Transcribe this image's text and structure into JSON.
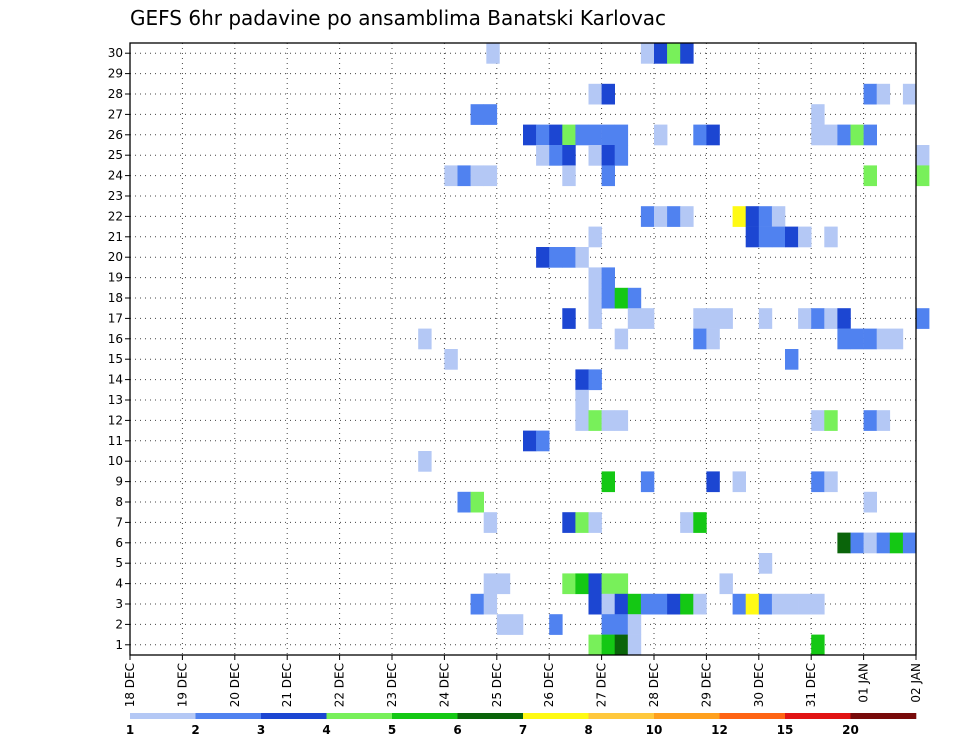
{
  "chart_data": {
    "type": "heatmap",
    "title": "GEFS 6hr padavine po ansamblima Banatski Karlovac",
    "xlabel": "",
    "ylabel": "",
    "x_tick_labels": [
      "18 DEC",
      "19 DEC",
      "20 DEC",
      "21 DEC",
      "22 DEC",
      "23 DEC",
      "24 DEC",
      "25 DEC",
      "26 DEC",
      "27 DEC",
      "28 DEC",
      "29 DEC",
      "30 DEC",
      "31 DEC",
      "01 JAN",
      "02 JAN"
    ],
    "xlim_days": [
      0,
      15
    ],
    "y_ticks": [
      1,
      2,
      3,
      4,
      5,
      6,
      7,
      8,
      9,
      10,
      11,
      12,
      13,
      14,
      15,
      16,
      17,
      18,
      19,
      20,
      21,
      22,
      23,
      24,
      25,
      26,
      27,
      28,
      29,
      30
    ],
    "ylim": [
      0.5,
      30.5
    ],
    "grid": true,
    "cell_width_days": 0.25,
    "legend": {
      "placement": "bottom",
      "labels": [
        "1",
        "2",
        "3",
        "4",
        "5",
        "6",
        "7",
        "8",
        "10",
        "12",
        "15",
        "20"
      ],
      "colors": [
        "#b4c8f5",
        "#5082f0",
        "#1c46d2",
        "#78f05a",
        "#14c814",
        "#0a640a",
        "#fffa14",
        "#ffc83c",
        "#ffa01e",
        "#ff6414",
        "#e11414",
        "#780a0a"
      ]
    },
    "cells": [
      {
        "m": 30,
        "d": 6.8,
        "c": 1
      },
      {
        "m": 30,
        "d": 9.75,
        "c": 1
      },
      {
        "m": 30,
        "d": 10.0,
        "c": 3
      },
      {
        "m": 30,
        "d": 10.25,
        "c": 4
      },
      {
        "m": 30,
        "d": 10.5,
        "c": 3
      },
      {
        "m": 28,
        "d": 8.75,
        "c": 1
      },
      {
        "m": 28,
        "d": 9.0,
        "c": 3
      },
      {
        "m": 28,
        "d": 14.0,
        "c": 2
      },
      {
        "m": 28,
        "d": 14.25,
        "c": 1
      },
      {
        "m": 28,
        "d": 14.75,
        "c": 1
      },
      {
        "m": 27,
        "d": 6.5,
        "c": 2
      },
      {
        "m": 27,
        "d": 6.75,
        "c": 2
      },
      {
        "m": 27,
        "d": 13.0,
        "c": 1
      },
      {
        "m": 26,
        "d": 7.5,
        "c": 3
      },
      {
        "m": 26,
        "d": 7.75,
        "c": 2
      },
      {
        "m": 26,
        "d": 8.0,
        "c": 3
      },
      {
        "m": 26,
        "d": 8.25,
        "c": 4
      },
      {
        "m": 26,
        "d": 8.5,
        "c": 2
      },
      {
        "m": 26,
        "d": 8.75,
        "c": 2
      },
      {
        "m": 26,
        "d": 9.0,
        "c": 2
      },
      {
        "m": 26,
        "d": 9.25,
        "c": 2
      },
      {
        "m": 26,
        "d": 10.0,
        "c": 1
      },
      {
        "m": 26,
        "d": 10.75,
        "c": 2
      },
      {
        "m": 26,
        "d": 11.0,
        "c": 3
      },
      {
        "m": 26,
        "d": 13.0,
        "c": 1
      },
      {
        "m": 26,
        "d": 13.25,
        "c": 1
      },
      {
        "m": 26,
        "d": 13.5,
        "c": 2
      },
      {
        "m": 26,
        "d": 13.75,
        "c": 4
      },
      {
        "m": 26,
        "d": 14.0,
        "c": 2
      },
      {
        "m": 25,
        "d": 7.75,
        "c": 1
      },
      {
        "m": 25,
        "d": 8.0,
        "c": 2
      },
      {
        "m": 25,
        "d": 8.25,
        "c": 3
      },
      {
        "m": 25,
        "d": 8.75,
        "c": 1
      },
      {
        "m": 25,
        "d": 9.0,
        "c": 3
      },
      {
        "m": 25,
        "d": 9.25,
        "c": 2
      },
      {
        "m": 25,
        "d": 15.0,
        "c": 1
      },
      {
        "m": 24,
        "d": 6.0,
        "c": 1
      },
      {
        "m": 24,
        "d": 6.25,
        "c": 2
      },
      {
        "m": 24,
        "d": 6.5,
        "c": 1
      },
      {
        "m": 24,
        "d": 6.75,
        "c": 1
      },
      {
        "m": 24,
        "d": 8.25,
        "c": 1
      },
      {
        "m": 24,
        "d": 9.0,
        "c": 2
      },
      {
        "m": 24,
        "d": 14.0,
        "c": 4
      },
      {
        "m": 24,
        "d": 15.0,
        "c": 4
      },
      {
        "m": 22,
        "d": 9.75,
        "c": 2
      },
      {
        "m": 22,
        "d": 10.0,
        "c": 1
      },
      {
        "m": 22,
        "d": 10.25,
        "c": 2
      },
      {
        "m": 22,
        "d": 10.5,
        "c": 1
      },
      {
        "m": 22,
        "d": 11.5,
        "c": 7
      },
      {
        "m": 22,
        "d": 11.75,
        "c": 3
      },
      {
        "m": 22,
        "d": 12.0,
        "c": 2
      },
      {
        "m": 22,
        "d": 12.25,
        "c": 1
      },
      {
        "m": 21,
        "d": 8.75,
        "c": 1
      },
      {
        "m": 21,
        "d": 11.75,
        "c": 3
      },
      {
        "m": 21,
        "d": 12.0,
        "c": 2
      },
      {
        "m": 21,
        "d": 12.25,
        "c": 2
      },
      {
        "m": 21,
        "d": 12.5,
        "c": 3
      },
      {
        "m": 21,
        "d": 12.75,
        "c": 1
      },
      {
        "m": 21,
        "d": 13.25,
        "c": 1
      },
      {
        "m": 20,
        "d": 7.75,
        "c": 3
      },
      {
        "m": 20,
        "d": 8.0,
        "c": 2
      },
      {
        "m": 20,
        "d": 8.25,
        "c": 2
      },
      {
        "m": 20,
        "d": 8.5,
        "c": 1
      },
      {
        "m": 19,
        "d": 8.75,
        "c": 1
      },
      {
        "m": 19,
        "d": 9.0,
        "c": 2
      },
      {
        "m": 18,
        "d": 8.75,
        "c": 1
      },
      {
        "m": 18,
        "d": 9.0,
        "c": 2
      },
      {
        "m": 18,
        "d": 9.25,
        "c": 5
      },
      {
        "m": 18,
        "d": 9.5,
        "c": 2
      },
      {
        "m": 17,
        "d": 8.25,
        "c": 3
      },
      {
        "m": 17,
        "d": 8.75,
        "c": 1
      },
      {
        "m": 17,
        "d": 9.5,
        "c": 1
      },
      {
        "m": 17,
        "d": 9.75,
        "c": 1
      },
      {
        "m": 17,
        "d": 10.75,
        "c": 1
      },
      {
        "m": 17,
        "d": 11.0,
        "c": 1
      },
      {
        "m": 17,
        "d": 11.25,
        "c": 1
      },
      {
        "m": 17,
        "d": 12.0,
        "c": 1
      },
      {
        "m": 17,
        "d": 12.75,
        "c": 1
      },
      {
        "m": 17,
        "d": 13.0,
        "c": 2
      },
      {
        "m": 17,
        "d": 13.25,
        "c": 1
      },
      {
        "m": 17,
        "d": 13.5,
        "c": 3
      },
      {
        "m": 17,
        "d": 15.0,
        "c": 2
      },
      {
        "m": 16,
        "d": 5.5,
        "c": 1
      },
      {
        "m": 16,
        "d": 9.25,
        "c": 1
      },
      {
        "m": 16,
        "d": 10.75,
        "c": 2
      },
      {
        "m": 16,
        "d": 11.0,
        "c": 1
      },
      {
        "m": 16,
        "d": 13.5,
        "c": 2
      },
      {
        "m": 16,
        "d": 13.75,
        "c": 2
      },
      {
        "m": 16,
        "d": 14.0,
        "c": 2
      },
      {
        "m": 16,
        "d": 14.25,
        "c": 1
      },
      {
        "m": 16,
        "d": 14.5,
        "c": 1
      },
      {
        "m": 15,
        "d": 6.0,
        "c": 1
      },
      {
        "m": 15,
        "d": 12.5,
        "c": 2
      },
      {
        "m": 14,
        "d": 8.5,
        "c": 3
      },
      {
        "m": 14,
        "d": 8.75,
        "c": 2
      },
      {
        "m": 13,
        "d": 8.5,
        "c": 1
      },
      {
        "m": 12,
        "d": 8.5,
        "c": 1
      },
      {
        "m": 12,
        "d": 8.75,
        "c": 4
      },
      {
        "m": 12,
        "d": 9.0,
        "c": 1
      },
      {
        "m": 12,
        "d": 9.25,
        "c": 1
      },
      {
        "m": 12,
        "d": 13.0,
        "c": 1
      },
      {
        "m": 12,
        "d": 13.25,
        "c": 4
      },
      {
        "m": 12,
        "d": 14.0,
        "c": 2
      },
      {
        "m": 12,
        "d": 14.25,
        "c": 1
      },
      {
        "m": 11,
        "d": 7.5,
        "c": 3
      },
      {
        "m": 11,
        "d": 7.75,
        "c": 2
      },
      {
        "m": 10,
        "d": 5.5,
        "c": 1
      },
      {
        "m": 9,
        "d": 9.0,
        "c": 5
      },
      {
        "m": 9,
        "d": 9.75,
        "c": 2
      },
      {
        "m": 9,
        "d": 11.0,
        "c": 3
      },
      {
        "m": 9,
        "d": 11.5,
        "c": 1
      },
      {
        "m": 9,
        "d": 13.0,
        "c": 2
      },
      {
        "m": 9,
        "d": 13.25,
        "c": 1
      },
      {
        "m": 8,
        "d": 6.25,
        "c": 2
      },
      {
        "m": 8,
        "d": 6.5,
        "c": 4
      },
      {
        "m": 8,
        "d": 14.0,
        "c": 1
      },
      {
        "m": 7,
        "d": 6.75,
        "c": 1
      },
      {
        "m": 7,
        "d": 8.25,
        "c": 3
      },
      {
        "m": 7,
        "d": 8.5,
        "c": 4
      },
      {
        "m": 7,
        "d": 8.75,
        "c": 1
      },
      {
        "m": 7,
        "d": 10.5,
        "c": 1
      },
      {
        "m": 7,
        "d": 10.75,
        "c": 5
      },
      {
        "m": 6,
        "d": 13.5,
        "c": 6
      },
      {
        "m": 6,
        "d": 13.75,
        "c": 2
      },
      {
        "m": 6,
        "d": 14.0,
        "c": 1
      },
      {
        "m": 6,
        "d": 14.25,
        "c": 2
      },
      {
        "m": 6,
        "d": 14.5,
        "c": 5
      },
      {
        "m": 6,
        "d": 14.75,
        "c": 2
      },
      {
        "m": 5,
        "d": 12.0,
        "c": 1
      },
      {
        "m": 4,
        "d": 6.75,
        "c": 1
      },
      {
        "m": 4,
        "d": 7.0,
        "c": 1
      },
      {
        "m": 4,
        "d": 8.25,
        "c": 4
      },
      {
        "m": 4,
        "d": 8.5,
        "c": 5
      },
      {
        "m": 4,
        "d": 8.75,
        "c": 3
      },
      {
        "m": 4,
        "d": 9.0,
        "c": 4
      },
      {
        "m": 4,
        "d": 9.25,
        "c": 4
      },
      {
        "m": 4,
        "d": 11.25,
        "c": 1
      },
      {
        "m": 3,
        "d": 6.5,
        "c": 2
      },
      {
        "m": 3,
        "d": 6.75,
        "c": 1
      },
      {
        "m": 3,
        "d": 8.75,
        "c": 3
      },
      {
        "m": 3,
        "d": 9.0,
        "c": 1
      },
      {
        "m": 3,
        "d": 9.25,
        "c": 3
      },
      {
        "m": 3,
        "d": 9.5,
        "c": 5
      },
      {
        "m": 3,
        "d": 9.75,
        "c": 2
      },
      {
        "m": 3,
        "d": 10.0,
        "c": 2
      },
      {
        "m": 3,
        "d": 10.25,
        "c": 3
      },
      {
        "m": 3,
        "d": 10.5,
        "c": 5
      },
      {
        "m": 3,
        "d": 10.75,
        "c": 1
      },
      {
        "m": 3,
        "d": 11.5,
        "c": 2
      },
      {
        "m": 3,
        "d": 11.75,
        "c": 7
      },
      {
        "m": 3,
        "d": 12.0,
        "c": 2
      },
      {
        "m": 3,
        "d": 12.25,
        "c": 1
      },
      {
        "m": 3,
        "d": 12.5,
        "c": 1
      },
      {
        "m": 3,
        "d": 12.75,
        "c": 1
      },
      {
        "m": 3,
        "d": 13.0,
        "c": 1
      },
      {
        "m": 2,
        "d": 7.0,
        "c": 1
      },
      {
        "m": 2,
        "d": 7.25,
        "c": 1
      },
      {
        "m": 2,
        "d": 8.0,
        "c": 2
      },
      {
        "m": 2,
        "d": 9.0,
        "c": 2
      },
      {
        "m": 2,
        "d": 9.25,
        "c": 2
      },
      {
        "m": 2,
        "d": 9.5,
        "c": 1
      },
      {
        "m": 1,
        "d": 8.75,
        "c": 4
      },
      {
        "m": 1,
        "d": 9.0,
        "c": 5
      },
      {
        "m": 1,
        "d": 9.25,
        "c": 6
      },
      {
        "m": 1,
        "d": 9.5,
        "c": 1
      },
      {
        "m": 1,
        "d": 13.0,
        "c": 5
      }
    ]
  }
}
